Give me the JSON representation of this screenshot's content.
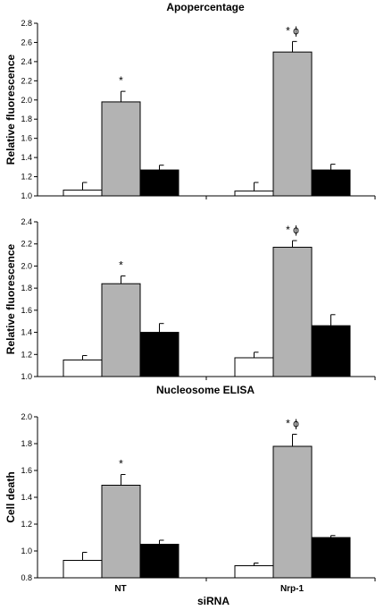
{
  "x_axis_title": "siRNA",
  "colors": {
    "series1": "#ffffff",
    "series2": "#b3b3b3",
    "series3": "#000000",
    "axis": "#000000"
  },
  "chart_data": [
    {
      "type": "bar",
      "title": "Apopercentage",
      "ylabel": "Relative fluorescence",
      "ylim": [
        1.0,
        2.8
      ],
      "yticks": [
        "1.0",
        "1.2",
        "1.4",
        "1.6",
        "1.8",
        "2.0",
        "2.2",
        "2.4",
        "2.6",
        "2.8"
      ],
      "categories": [
        "NT",
        "Nrp-1"
      ],
      "series": [
        {
          "values": [
            1.06,
            1.05
          ],
          "errors": [
            0.08,
            0.09
          ],
          "color": "#ffffff"
        },
        {
          "values": [
            1.98,
            2.5
          ],
          "errors": [
            0.11,
            0.11
          ],
          "color": "#b3b3b3"
        },
        {
          "values": [
            1.27,
            1.27
          ],
          "errors": [
            0.05,
            0.06
          ],
          "color": "#000000"
        }
      ],
      "annotations": [
        "*",
        "* ϕ"
      ]
    },
    {
      "type": "bar",
      "title": "Nucleosome ELISA",
      "ylabel": "Relative fluorescence",
      "ylim": [
        1.0,
        2.4
      ],
      "yticks": [
        "1.0",
        "1.2",
        "1.4",
        "1.6",
        "1.8",
        "2.0",
        "2.2",
        "2.4"
      ],
      "categories": [
        "NT",
        "Nrp-1"
      ],
      "series": [
        {
          "values": [
            1.15,
            1.17
          ],
          "errors": [
            0.04,
            0.05
          ],
          "color": "#ffffff"
        },
        {
          "values": [
            1.84,
            2.17
          ],
          "errors": [
            0.07,
            0.06
          ],
          "color": "#b3b3b3"
        },
        {
          "values": [
            1.4,
            1.46
          ],
          "errors": [
            0.08,
            0.1
          ],
          "color": "#000000"
        }
      ],
      "annotations": [
        "*",
        "* ϕ"
      ]
    },
    {
      "type": "bar",
      "title": "",
      "ylabel": "Cell death",
      "ylim": [
        0.8,
        2.0
      ],
      "yticks": [
        "0.8",
        "1.0",
        "1.2",
        "1.4",
        "1.6",
        "1.8",
        "2.0"
      ],
      "categories": [
        "NT",
        "Nrp-1"
      ],
      "series": [
        {
          "values": [
            0.93,
            0.89
          ],
          "errors": [
            0.06,
            0.02
          ],
          "color": "#ffffff"
        },
        {
          "values": [
            1.49,
            1.78
          ],
          "errors": [
            0.08,
            0.09
          ],
          "color": "#b3b3b3"
        },
        {
          "values": [
            1.05,
            1.1
          ],
          "errors": [
            0.03,
            0.015
          ],
          "color": "#000000"
        }
      ],
      "annotations": [
        "*",
        "* ϕ"
      ]
    }
  ]
}
